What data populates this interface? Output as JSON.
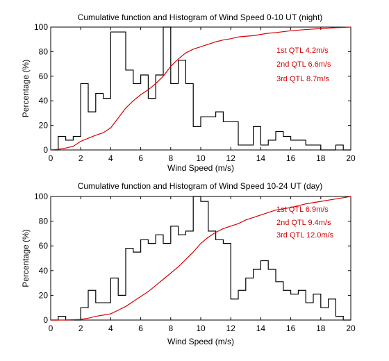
{
  "chart_data": [
    {
      "type": "line",
      "title": "Cumulative function and Histogram of Wind Speed 0-10 UT (night)",
      "xlabel": "Wind Speed (m/s)",
      "ylabel": "Percentage (%)",
      "xlim": [
        0,
        20
      ],
      "ylim": [
        0,
        100
      ],
      "xticks": [
        "0",
        "2",
        "4",
        "6",
        "8",
        "10",
        "12",
        "14",
        "16",
        "18",
        "20"
      ],
      "yticks": [
        "0",
        "20",
        "40",
        "60",
        "80",
        "100"
      ],
      "grid": false,
      "histogram": {
        "name": "Histogram",
        "color": "#000000",
        "bin_edges": [
          0,
          0.5,
          1,
          1.5,
          2,
          2.5,
          3,
          3.5,
          4,
          4.5,
          5,
          5.5,
          6,
          6.5,
          7,
          7.5,
          8,
          8.5,
          9,
          9.5,
          10,
          10.5,
          11,
          11.5,
          12,
          12.5,
          13,
          13.5,
          14,
          14.5,
          15,
          15.5,
          16,
          16.5,
          17,
          17.5,
          18,
          18.5,
          19,
          19.5,
          20
        ],
        "values": [
          0,
          11,
          8,
          11,
          54,
          31,
          46,
          42,
          96,
          96,
          65,
          54,
          61,
          42,
          61,
          100,
          54,
          73,
          54,
          19,
          27,
          27,
          31,
          23,
          23,
          4,
          4,
          19,
          4,
          8,
          15,
          11,
          8,
          8,
          4,
          4,
          0,
          0,
          4,
          0
        ]
      },
      "cumulative": {
        "name": "Cumulative function",
        "color": "#d40000",
        "x": [
          0,
          0.5,
          1,
          1.5,
          2,
          2.5,
          3,
          3.5,
          4,
          4.5,
          5,
          5.5,
          6,
          6.5,
          7,
          7.5,
          8,
          8.5,
          9,
          9.5,
          10,
          10.5,
          11,
          11.5,
          12,
          12.5,
          13,
          13.5,
          14,
          14.5,
          15,
          16,
          17,
          18,
          19,
          20
        ],
        "y": [
          0,
          0.5,
          1.5,
          3,
          7,
          9.5,
          12,
          14,
          18,
          26,
          34,
          40,
          45,
          49,
          54,
          60,
          68,
          74,
          79,
          82,
          84,
          86,
          88,
          89.5,
          90.5,
          92,
          92.5,
          93,
          94,
          95,
          95.5,
          97,
          98,
          98.8,
          99.5,
          100
        ]
      },
      "annotations": [
        "1st QTL 4.2m/s",
        "2nd QTL 6.6m/s",
        "3rd QTL 8.7m/s"
      ],
      "annotation_color": "#d40000"
    },
    {
      "type": "line",
      "title": "Cumulative function and Histogram of Wind Speed 10-24 UT (day)",
      "xlabel": "Wind Speed (m/s)",
      "ylabel": "Percentage (%)",
      "xlim": [
        0,
        20
      ],
      "ylim": [
        0,
        100
      ],
      "xticks": [
        "0",
        "2",
        "4",
        "6",
        "8",
        "10",
        "12",
        "14",
        "16",
        "18",
        "20"
      ],
      "yticks": [
        "0",
        "20",
        "40",
        "60",
        "80",
        "100"
      ],
      "grid": false,
      "histogram": {
        "name": "Histogram",
        "color": "#000000",
        "bin_edges": [
          0,
          0.5,
          1,
          1.5,
          2,
          2.5,
          3,
          3.5,
          4,
          4.5,
          5,
          5.5,
          6,
          6.5,
          7,
          7.5,
          8,
          8.5,
          9,
          9.5,
          10,
          10.5,
          11,
          11.5,
          12,
          12.5,
          13,
          13.5,
          14,
          14.5,
          15,
          15.5,
          16,
          16.5,
          17,
          17.5,
          18,
          18.5,
          19,
          19.5,
          20
        ],
        "values": [
          0,
          3,
          0,
          0,
          10,
          24,
          14,
          14,
          34,
          20,
          58,
          55,
          65,
          62,
          69,
          62,
          76,
          69,
          72,
          100,
          96,
          72,
          65,
          62,
          17,
          24,
          34,
          41,
          48,
          41,
          31,
          24,
          21,
          24,
          14,
          21,
          10,
          17,
          3,
          0
        ]
      },
      "cumulative": {
        "name": "Cumulative function",
        "color": "#d40000",
        "x": [
          0,
          1,
          2,
          2.5,
          3,
          3.5,
          4,
          4.5,
          5,
          5.5,
          6,
          6.5,
          7,
          7.5,
          8,
          8.5,
          9,
          9.5,
          10,
          10.5,
          11,
          11.5,
          12,
          12.5,
          13,
          13.5,
          14,
          14.5,
          15,
          15.5,
          16,
          16.5,
          17,
          17.5,
          18,
          18.5,
          19,
          19.5,
          20
        ],
        "y": [
          0,
          0,
          0.5,
          1.5,
          3,
          4,
          5,
          8,
          11,
          15,
          19,
          23,
          28,
          33,
          38,
          43,
          49,
          55,
          62,
          67,
          71,
          74,
          76,
          78,
          81,
          83,
          85,
          87,
          89,
          90,
          91,
          92.5,
          94,
          95,
          96,
          97,
          98,
          99,
          100
        ]
      },
      "annotations": [
        "1st QTL 6.9m/s",
        "2nd QTL 9.4m/s",
        "3rd QTL 12.0m/s"
      ],
      "annotation_color": "#d40000"
    }
  ]
}
